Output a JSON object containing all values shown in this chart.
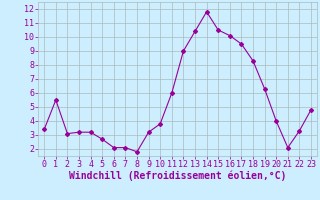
{
  "x": [
    0,
    1,
    2,
    3,
    4,
    5,
    6,
    7,
    8,
    9,
    10,
    11,
    12,
    13,
    14,
    15,
    16,
    17,
    18,
    19,
    20,
    21,
    22,
    23
  ],
  "y": [
    3.4,
    5.5,
    3.1,
    3.2,
    3.2,
    2.7,
    2.1,
    2.1,
    1.8,
    3.2,
    3.8,
    6.0,
    9.0,
    10.4,
    11.8,
    10.5,
    10.1,
    9.5,
    8.3,
    6.3,
    4.0,
    2.1,
    3.3,
    4.8
  ],
  "line_color": "#990099",
  "marker": "D",
  "marker_size": 2.0,
  "bg_color": "#cceeff",
  "grid_color": "#aabbbb",
  "xlabel": "Windchill (Refroidissement éolien,°C)",
  "xlabel_color": "#990099",
  "tick_color": "#990099",
  "ylim": [
    1.5,
    12.5
  ],
  "yticks": [
    2,
    3,
    4,
    5,
    6,
    7,
    8,
    9,
    10,
    11,
    12
  ],
  "xticks": [
    0,
    1,
    2,
    3,
    4,
    5,
    6,
    7,
    8,
    9,
    10,
    11,
    12,
    13,
    14,
    15,
    16,
    17,
    18,
    19,
    20,
    21,
    22,
    23
  ],
  "tick_fontsize": 6,
  "xlabel_fontsize": 7
}
